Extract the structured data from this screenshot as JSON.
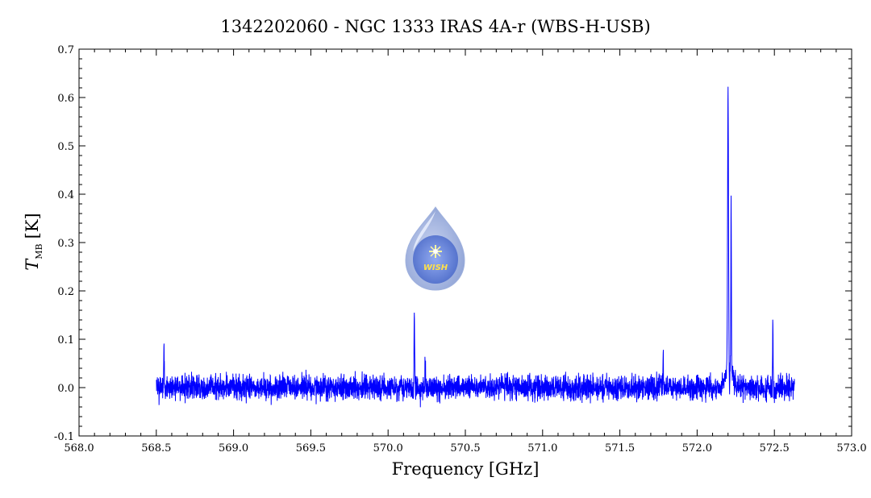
{
  "chart_data": {
    "type": "line",
    "title": "1342202060 - NGC 1333 IRAS 4A-r (WBS-H-USB)",
    "xlabel": "Frequency [GHz]",
    "ylabel_main": "T",
    "ylabel_sub": "MB",
    "ylabel_unit": "[K]",
    "xlim": [
      568.0,
      573.0
    ],
    "ylim": [
      -0.1,
      0.7
    ],
    "xticks": [
      "568.0",
      "569.0",
      "569.5",
      "570.0",
      "570.5",
      "571.0",
      "571.5",
      "572.0",
      "572.5",
      "573.0",
      "568.5"
    ],
    "xtick_values": [
      568.0,
      569.0,
      569.5,
      570.0,
      570.5,
      571.0,
      571.5,
      572.0,
      572.5,
      573.0,
      568.5
    ],
    "yticks": [
      "-0.1",
      "0.0",
      "0.1",
      "0.2",
      "0.3",
      "0.4",
      "0.5",
      "0.6",
      "0.7"
    ],
    "ytick_values": [
      -0.1,
      0.0,
      0.1,
      0.2,
      0.3,
      0.4,
      0.5,
      0.6,
      0.7
    ],
    "line_color": "#0000ff",
    "series": [
      {
        "x_range": [
          568.5,
          572.63
        ],
        "noise_rms": 0.018,
        "features": [
          {
            "x": 568.55,
            "y": 0.1
          },
          {
            "x": 570.17,
            "y": 0.18
          },
          {
            "x": 570.24,
            "y": 0.07
          },
          {
            "x": 571.78,
            "y": 0.08
          },
          {
            "x": 572.2,
            "y": 0.585
          },
          {
            "x": 572.22,
            "y": 0.35
          },
          {
            "x": 572.21,
            "y": -0.06
          },
          {
            "x": 572.49,
            "y": 0.15
          }
        ]
      }
    ]
  },
  "logo": {
    "text": "WISH",
    "colors": {
      "outer": "#8fa3d6",
      "inner": "#3d5fc8",
      "star": "#fff7a0"
    }
  }
}
